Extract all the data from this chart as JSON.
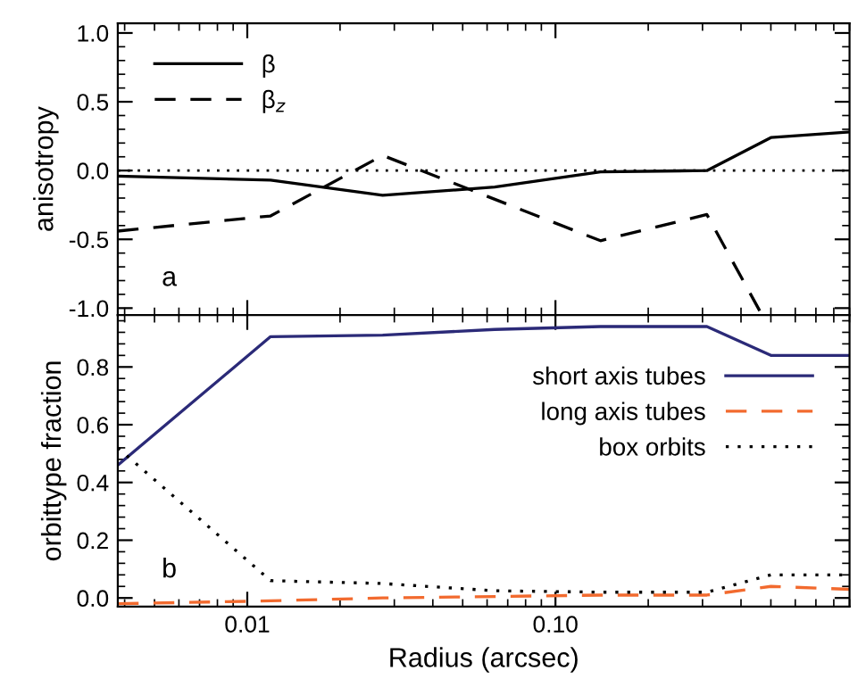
{
  "chart_data": [
    {
      "type": "line",
      "ylabel": "anisotropy",
      "annotations": [
        "a"
      ],
      "log": "x",
      "xlim": [
        0.0038,
        0.9
      ],
      "ylim": [
        -1.05,
        1.07
      ],
      "yticks": [
        {
          "value": -1,
          "label": "-1.0"
        },
        -0.5,
        {
          "value": 0,
          "label": "0.0"
        },
        0.5,
        {
          "value": 1,
          "label": "1.0"
        }
      ],
      "tick_labels": "y",
      "legend": "top left",
      "grid": false,
      "ref_lines": [
        {
          "axis": "y",
          "value": 0.0,
          "label": null,
          "color": "#000000",
          "line_style": "dotted"
        }
      ],
      "series": [
        {
          "name": "β",
          "color": "#000000",
          "line_style": "solid",
          "x": [
            0.0038,
            0.0119,
            0.0275,
            0.0635,
            0.14,
            0.31,
            0.5,
            0.9
          ],
          "values": [
            -0.04,
            -0.07,
            -0.18,
            -0.12,
            -0.01,
            0.0,
            0.24,
            0.28
          ]
        },
        {
          "name": "β$_{z}$",
          "color": "#000000",
          "line_style": "dashed",
          "x": [
            0.0038,
            0.0119,
            0.0275,
            0.14,
            0.31,
            0.46
          ],
          "values": [
            -0.44,
            -0.33,
            0.11,
            -0.51,
            -0.32,
            -1.02
          ]
        }
      ]
    },
    {
      "type": "line",
      "ylabel": "orbittype fraction",
      "xlabel": "Radius (arcsec)",
      "annotations": [
        "b"
      ],
      "log": "x",
      "xlim": [
        0.0038,
        0.9
      ],
      "xticks": [
        0.01,
        {
          "value": 0.1,
          "label": "0.10"
        }
      ],
      "ylim": [
        -0.03,
        0.98
      ],
      "yticks": [
        {
          "value": 0,
          "label": "0.0"
        },
        0.2,
        0.4,
        0.6,
        0.8
      ],
      "legend": "top right",
      "grid": false,
      "series": [
        {
          "name": "short axis tubes",
          "color": "#2b2a78",
          "line_style": "solid",
          "x": [
            0.0038,
            0.0119,
            0.0275,
            0.0635,
            0.14,
            0.31,
            0.5,
            0.9
          ],
          "values": [
            0.46,
            0.905,
            0.91,
            0.93,
            0.94,
            0.94,
            0.84,
            0.84
          ]
        },
        {
          "name": "long axis tubes",
          "color": "#f26a2e",
          "line_style": "dashed",
          "x": [
            0.0038,
            0.0119,
            0.0275,
            0.0635,
            0.14,
            0.31,
            0.5,
            0.9
          ],
          "values": [
            -0.02,
            -0.01,
            0.0,
            0.005,
            0.01,
            0.01,
            0.04,
            0.03
          ]
        },
        {
          "name": "box orbits",
          "color": "#000000",
          "line_style": "dotted",
          "x": [
            0.0038,
            0.0119,
            0.0275,
            0.0635,
            0.14,
            0.31,
            0.5,
            0.9
          ],
          "values": [
            0.52,
            0.06,
            0.05,
            0.025,
            0.02,
            0.02,
            0.08,
            0.08
          ]
        }
      ]
    }
  ]
}
